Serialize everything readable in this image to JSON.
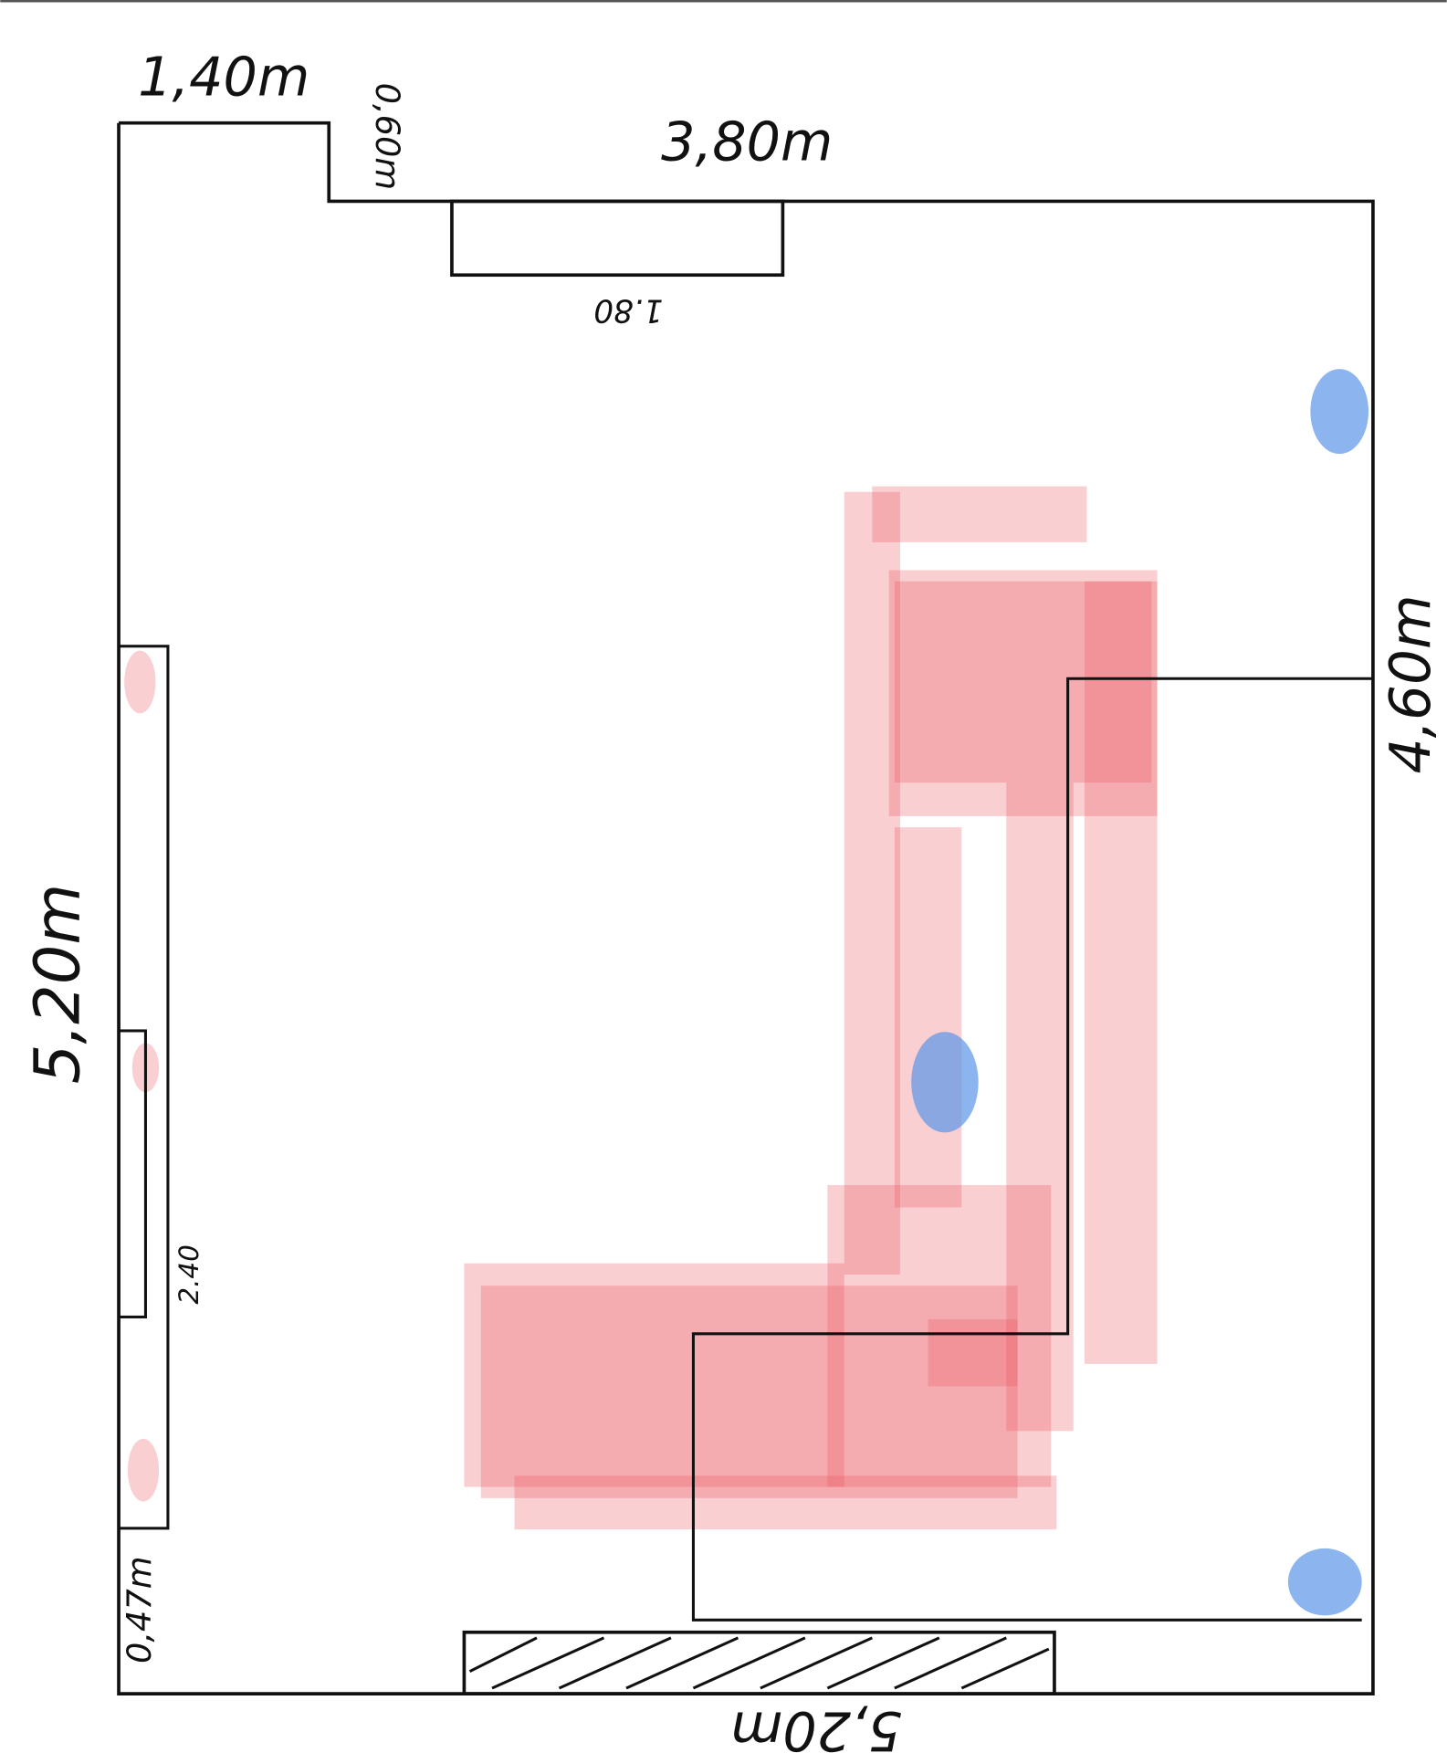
{
  "labels": [
    "1,40m",
    "0,60m",
    "3,80m",
    "1.80",
    "4,60m",
    "5,20m",
    "2.40",
    "0,47m",
    "5,20m"
  ]
}
